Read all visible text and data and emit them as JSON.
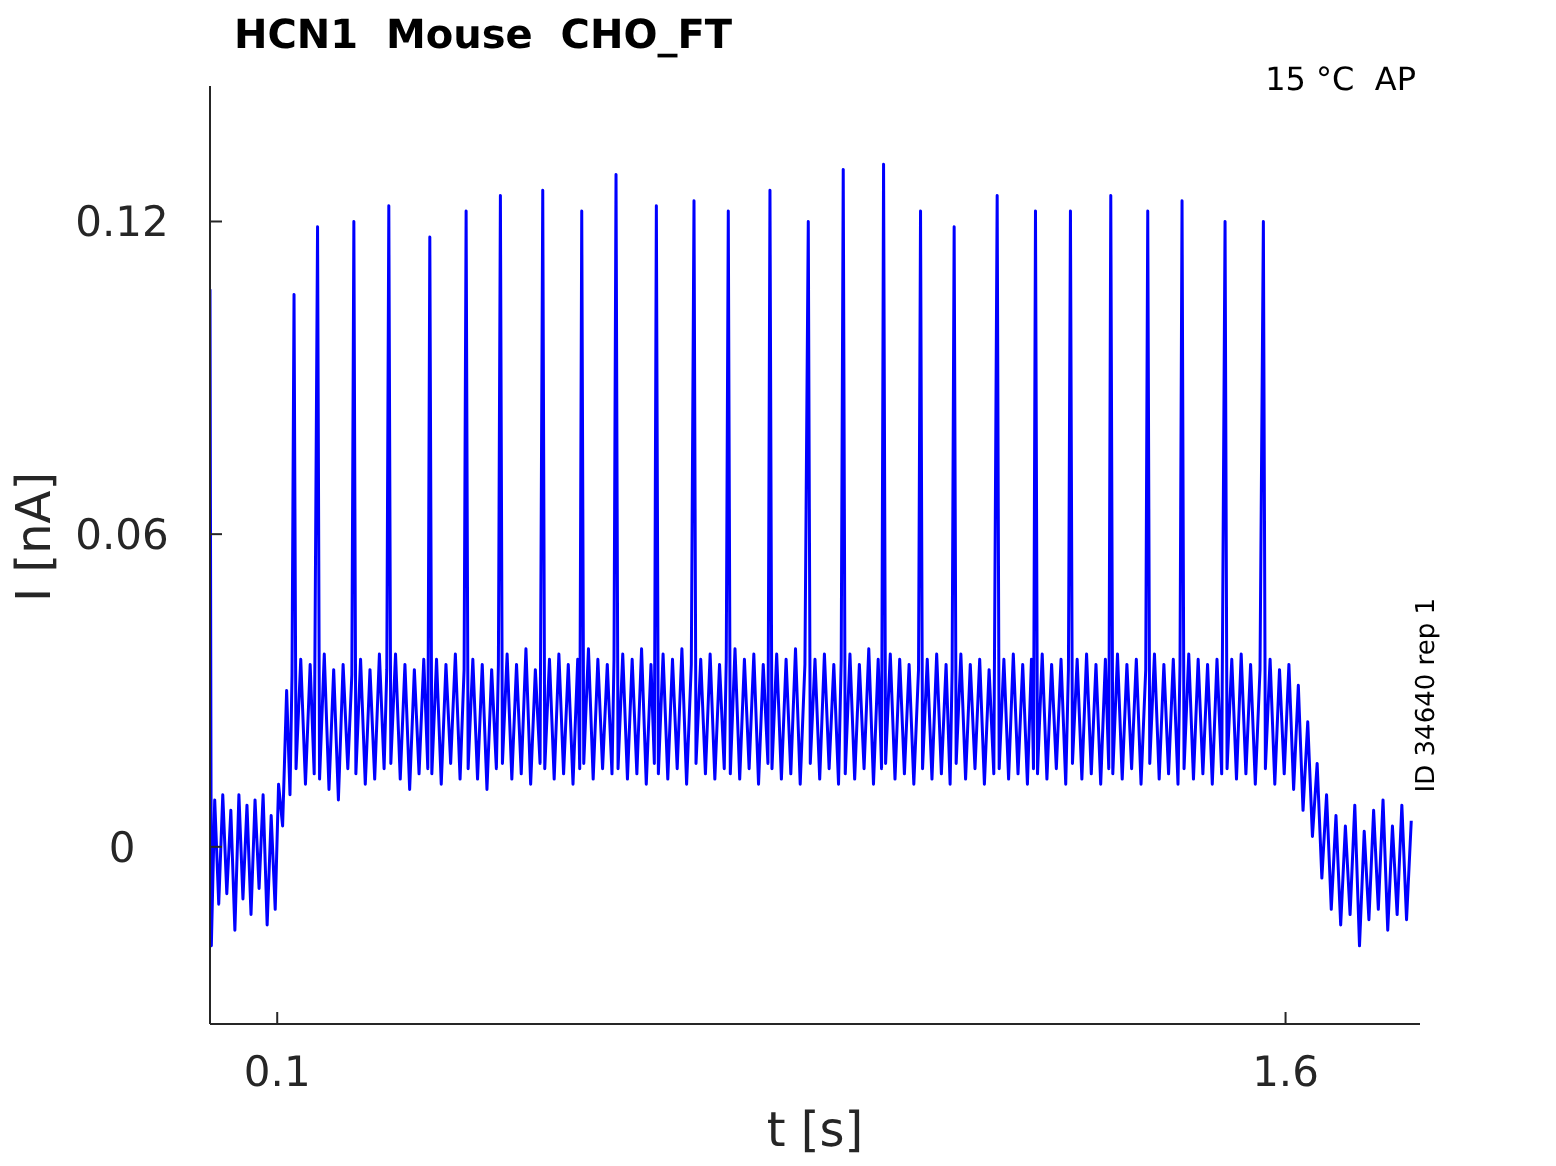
{
  "chart_data": {
    "type": "line",
    "title": "HCN1  Mouse  CHO_FT",
    "xlabel": "t [s]",
    "ylabel": "I [nA]",
    "annotations": [
      "15 °C  AP",
      "ID 34640 rep 1"
    ],
    "xlim": [
      0,
      1.8
    ],
    "xticks": [
      0.1,
      1.6
    ],
    "ylim": [
      -0.034,
      0.146
    ],
    "yticks": [
      0,
      0.06,
      0.12
    ],
    "x": [
      0,
      0.002,
      0.007,
      0.013,
      0.019,
      0.025,
      0.031,
      0.037,
      0.043,
      0.049,
      0.055,
      0.061,
      0.067,
      0.073,
      0.079,
      0.085,
      0.091,
      0.097,
      0.102,
      0.108,
      0.114,
      0.119,
      0.122,
      0.125,
      0.128,
      0.135,
      0.142,
      0.149,
      0.155,
      0.16,
      0.163,
      0.17,
      0.177,
      0.184,
      0.191,
      0.198,
      0.205,
      0.211,
      0.214,
      0.217,
      0.224,
      0.231,
      0.238,
      0.245,
      0.252,
      0.259,
      0.263,
      0.266,
      0.269,
      0.276,
      0.283,
      0.29,
      0.297,
      0.304,
      0.311,
      0.318,
      0.324,
      0.327,
      0.33,
      0.337,
      0.344,
      0.351,
      0.358,
      0.365,
      0.372,
      0.378,
      0.381,
      0.384,
      0.391,
      0.398,
      0.405,
      0.412,
      0.419,
      0.426,
      0.429,
      0.432,
      0.435,
      0.442,
      0.449,
      0.456,
      0.463,
      0.47,
      0.477,
      0.484,
      0.491,
      0.495,
      0.498,
      0.505,
      0.512,
      0.519,
      0.526,
      0.533,
      0.54,
      0.547,
      0.55,
      0.553,
      0.556,
      0.563,
      0.57,
      0.577,
      0.584,
      0.591,
      0.598,
      0.601,
      0.604,
      0.607,
      0.614,
      0.621,
      0.628,
      0.635,
      0.642,
      0.649,
      0.656,
      0.661,
      0.664,
      0.667,
      0.674,
      0.681,
      0.688,
      0.695,
      0.702,
      0.709,
      0.716,
      0.72,
      0.723,
      0.73,
      0.737,
      0.744,
      0.751,
      0.758,
      0.765,
      0.768,
      0.771,
      0.774,
      0.781,
      0.788,
      0.795,
      0.802,
      0.809,
      0.816,
      0.823,
      0.83,
      0.833,
      0.836,
      0.843,
      0.85,
      0.857,
      0.864,
      0.871,
      0.878,
      0.885,
      0.89,
      0.893,
      0.9,
      0.907,
      0.914,
      0.921,
      0.928,
      0.935,
      0.939,
      0.942,
      0.945,
      0.952,
      0.959,
      0.966,
      0.973,
      0.98,
      0.987,
      0.994,
      0.999,
      1.002,
      1.005,
      1.012,
      1.019,
      1.026,
      1.033,
      1.04,
      1.047,
      1.054,
      1.057,
      1.06,
      1.067,
      1.074,
      1.081,
      1.088,
      1.095,
      1.101,
      1.104,
      1.107,
      1.11,
      1.117,
      1.124,
      1.131,
      1.138,
      1.145,
      1.152,
      1.159,
      1.166,
      1.171,
      1.174,
      1.181,
      1.188,
      1.195,
      1.202,
      1.209,
      1.216,
      1.222,
      1.225,
      1.228,
      1.231,
      1.238,
      1.245,
      1.252,
      1.259,
      1.266,
      1.273,
      1.277,
      1.28,
      1.283,
      1.29,
      1.297,
      1.304,
      1.311,
      1.318,
      1.325,
      1.332,
      1.337,
      1.34,
      1.343,
      1.35,
      1.357,
      1.364,
      1.371,
      1.378,
      1.385,
      1.392,
      1.395,
      1.398,
      1.405,
      1.412,
      1.419,
      1.426,
      1.433,
      1.44,
      1.443,
      1.446,
      1.449,
      1.456,
      1.463,
      1.47,
      1.477,
      1.484,
      1.491,
      1.498,
      1.505,
      1.51,
      1.513,
      1.52,
      1.527,
      1.534,
      1.541,
      1.548,
      1.555,
      1.562,
      1.567,
      1.57,
      1.577,
      1.584,
      1.591,
      1.598,
      1.605,
      1.612,
      1.619,
      1.626,
      1.633,
      1.64,
      1.647,
      1.654,
      1.661,
      1.668,
      1.675,
      1.682,
      1.689,
      1.696,
      1.703,
      1.71,
      1.717,
      1.724,
      1.731,
      1.738,
      1.745,
      1.752,
      1.759,
      1.766,
      1.773,
      1.78,
      1.787
    ],
    "series": [
      {
        "color": "#0000ff",
        "values": [
          0.107,
          -0.019,
          0.009,
          -0.011,
          0.01,
          -0.009,
          0.007,
          -0.016,
          0.01,
          -0.01,
          0.008,
          -0.013,
          0.009,
          -0.008,
          0.01,
          -0.015,
          0.006,
          -0.012,
          0.012,
          0.004,
          0.03,
          0.01,
          0.033,
          0.106,
          0.015,
          0.036,
          0.012,
          0.035,
          0.014,
          0.119,
          0.013,
          0.037,
          0.011,
          0.034,
          0.009,
          0.035,
          0.015,
          0.033,
          0.12,
          0.014,
          0.036,
          0.012,
          0.034,
          0.013,
          0.037,
          0.015,
          0.034,
          0.123,
          0.016,
          0.037,
          0.013,
          0.035,
          0.011,
          0.034,
          0.014,
          0.036,
          0.015,
          0.117,
          0.014,
          0.036,
          0.012,
          0.035,
          0.016,
          0.037,
          0.013,
          0.034,
          0.122,
          0.015,
          0.036,
          0.013,
          0.035,
          0.011,
          0.034,
          0.015,
          0.035,
          0.125,
          0.016,
          0.037,
          0.013,
          0.035,
          0.014,
          0.038,
          0.012,
          0.034,
          0.016,
          0.126,
          0.015,
          0.036,
          0.013,
          0.037,
          0.014,
          0.035,
          0.012,
          0.036,
          0.015,
          0.122,
          0.016,
          0.038,
          0.013,
          0.036,
          0.015,
          0.035,
          0.014,
          0.036,
          0.129,
          0.015,
          0.037,
          0.013,
          0.036,
          0.014,
          0.038,
          0.012,
          0.035,
          0.016,
          0.123,
          0.014,
          0.037,
          0.013,
          0.036,
          0.015,
          0.038,
          0.012,
          0.035,
          0.124,
          0.016,
          0.036,
          0.014,
          0.037,
          0.013,
          0.035,
          0.015,
          0.036,
          0.122,
          0.014,
          0.038,
          0.013,
          0.036,
          0.015,
          0.037,
          0.012,
          0.035,
          0.016,
          0.126,
          0.015,
          0.037,
          0.013,
          0.036,
          0.014,
          0.038,
          0.012,
          0.035,
          0.12,
          0.016,
          0.036,
          0.013,
          0.037,
          0.015,
          0.035,
          0.012,
          0.036,
          0.13,
          0.014,
          0.037,
          0.013,
          0.035,
          0.015,
          0.038,
          0.012,
          0.036,
          0.015,
          0.131,
          0.016,
          0.037,
          0.013,
          0.036,
          0.014,
          0.035,
          0.012,
          0.034,
          0.122,
          0.015,
          0.036,
          0.013,
          0.037,
          0.014,
          0.035,
          0.012,
          0.034,
          0.119,
          0.016,
          0.037,
          0.013,
          0.035,
          0.015,
          0.036,
          0.012,
          0.034,
          0.014,
          0.125,
          0.015,
          0.036,
          0.013,
          0.037,
          0.014,
          0.035,
          0.012,
          0.036,
          0.015,
          0.122,
          0.014,
          0.037,
          0.013,
          0.035,
          0.015,
          0.036,
          0.012,
          0.034,
          0.122,
          0.016,
          0.036,
          0.013,
          0.037,
          0.014,
          0.035,
          0.012,
          0.036,
          0.015,
          0.125,
          0.014,
          0.037,
          0.013,
          0.035,
          0.015,
          0.036,
          0.012,
          0.034,
          0.122,
          0.016,
          0.037,
          0.013,
          0.035,
          0.014,
          0.036,
          0.012,
          0.035,
          0.124,
          0.015,
          0.037,
          0.013,
          0.036,
          0.014,
          0.035,
          0.012,
          0.036,
          0.014,
          0.12,
          0.015,
          0.036,
          0.013,
          0.037,
          0.014,
          0.035,
          0.012,
          0.034,
          0.12,
          0.015,
          0.036,
          0.012,
          0.034,
          0.014,
          0.035,
          0.011,
          0.031,
          0.007,
          0.024,
          0.002,
          0.016,
          -0.006,
          0.01,
          -0.012,
          0.006,
          -0.015,
          0.004,
          -0.013,
          0.008,
          -0.019,
          0.003,
          -0.014,
          0.007,
          -0.012,
          0.009,
          -0.016,
          0.004,
          -0.013,
          0.008,
          -0.014,
          0.005
        ]
      }
    ]
  }
}
